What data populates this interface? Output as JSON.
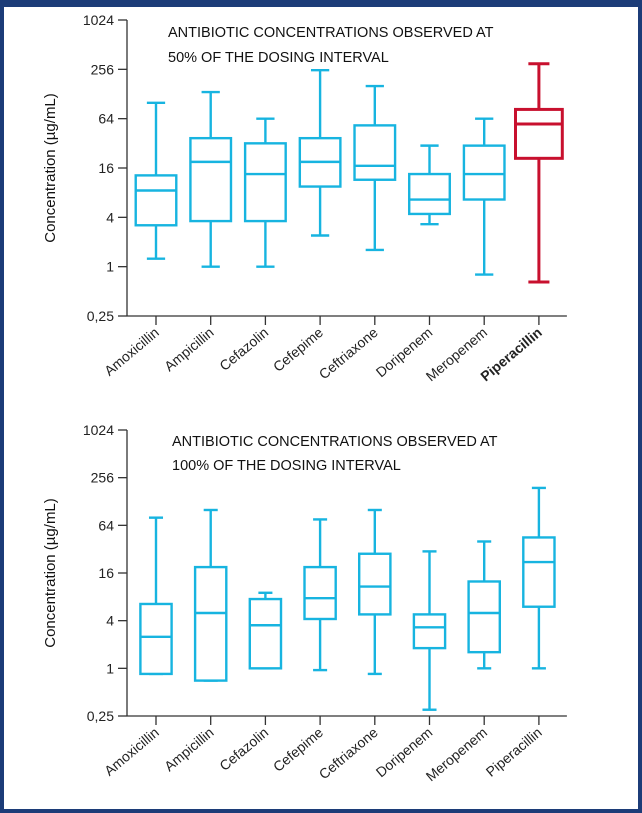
{
  "colors": {
    "frame": "#1c3c78",
    "box": "#17b4e0",
    "highlight": "#c8102e",
    "axis": "#333333"
  },
  "chart_data": [
    {
      "type": "boxplot",
      "title": [
        "ANTIBIOTIC CONCENTRATIONS OBSERVED AT",
        "50% OF THE DOSING INTERVAL"
      ],
      "ylabel": "Concentration (µg/mL)",
      "yscale": "log2",
      "ylim": [
        0.25,
        1024
      ],
      "yticks": [
        0.25,
        1,
        4,
        16,
        64,
        256,
        1024
      ],
      "ytick_labels": [
        "0,25",
        "1",
        "4",
        "16",
        "64",
        "256",
        "1024"
      ],
      "categories": [
        "Amoxicillin",
        "Ampicillin",
        "Cefazolin",
        "Cefepime",
        "Ceftriaxone",
        "Doripenem",
        "Meropenem",
        "Piperacillin"
      ],
      "highlight": "Piperacillin",
      "boxes": [
        {
          "min": 1.25,
          "q1": 3.2,
          "median": 8.5,
          "q3": 13,
          "max": 100
        },
        {
          "min": 1.0,
          "q1": 3.6,
          "median": 19,
          "q3": 37,
          "max": 135
        },
        {
          "min": 1.0,
          "q1": 3.6,
          "median": 13.5,
          "q3": 32,
          "max": 64
        },
        {
          "min": 2.4,
          "q1": 9.5,
          "median": 19,
          "q3": 37,
          "max": 250
        },
        {
          "min": 1.6,
          "q1": 11.5,
          "median": 17,
          "q3": 53,
          "max": 160
        },
        {
          "min": 3.3,
          "q1": 4.4,
          "median": 6.6,
          "q3": 13.5,
          "max": 30
        },
        {
          "min": 0.8,
          "q1": 6.6,
          "median": 13.5,
          "q3": 30,
          "max": 64
        },
        {
          "min": 0.65,
          "q1": 21,
          "median": 55,
          "q3": 83,
          "max": 300
        }
      ]
    },
    {
      "type": "boxplot",
      "title": [
        "ANTIBIOTIC CONCENTRATIONS OBSERVED AT",
        "100% OF THE DOSING INTERVAL"
      ],
      "ylabel": "Concentration (µg/mL)",
      "yscale": "log2",
      "ylim": [
        0.25,
        1024
      ],
      "yticks": [
        0.25,
        1,
        4,
        16,
        64,
        256,
        1024
      ],
      "ytick_labels": [
        "0,25",
        "1",
        "4",
        "16",
        "64",
        "256",
        "1024"
      ],
      "categories": [
        "Amoxicillin",
        "Ampicillin",
        "Cefazolin",
        "Cefepime",
        "Ceftriaxone",
        "Doripenem",
        "Meropenem",
        "Piperacillin"
      ],
      "boxes": [
        {
          "min": 0.85,
          "q1": 0.85,
          "median": 2.5,
          "q3": 6.5,
          "max": 80
        },
        {
          "min": 0.7,
          "q1": 0.7,
          "median": 5.0,
          "q3": 19,
          "max": 100
        },
        {
          "min": 1.0,
          "q1": 1.0,
          "median": 3.5,
          "q3": 7.5,
          "max": 9.0
        },
        {
          "min": 0.95,
          "q1": 4.2,
          "median": 7.7,
          "q3": 19,
          "max": 76
        },
        {
          "min": 0.85,
          "q1": 4.8,
          "median": 10.8,
          "q3": 28,
          "max": 100
        },
        {
          "min": 0.3,
          "q1": 1.8,
          "median": 3.3,
          "q3": 4.8,
          "max": 30
        },
        {
          "min": 1.0,
          "q1": 1.6,
          "median": 5.0,
          "q3": 12.5,
          "max": 40
        },
        {
          "min": 1.0,
          "q1": 6.0,
          "median": 22,
          "q3": 45,
          "max": 190
        }
      ]
    }
  ]
}
